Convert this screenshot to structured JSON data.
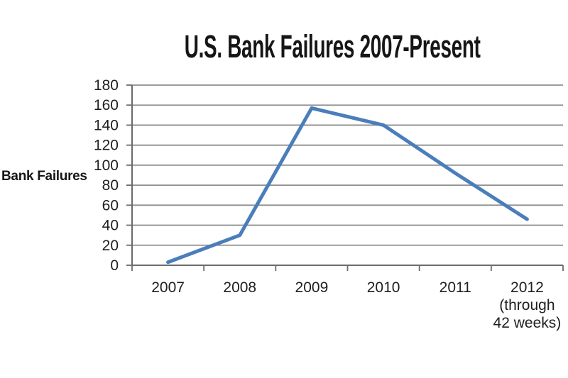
{
  "chart_data": {
    "type": "line",
    "title": "U.S. Bank Failures 2007-Present",
    "ylabel": "Bank Failures",
    "xlabel": "",
    "categories": [
      "2007",
      "2008",
      "2009",
      "2010",
      "2011",
      "2012 (through 42 weeks)"
    ],
    "xtick_label_lines": [
      [
        "2007"
      ],
      [
        "2008"
      ],
      [
        "2009"
      ],
      [
        "2010"
      ],
      [
        "2011"
      ],
      [
        "2012",
        "(through",
        "42 weeks)"
      ]
    ],
    "series": [
      {
        "name": "Bank Failures",
        "values": [
          3,
          30,
          157,
          140,
          92,
          46
        ]
      }
    ],
    "ylim": [
      0,
      180
    ],
    "ytick_step": 20,
    "grid": true,
    "markers": false,
    "legend_position": "none",
    "colors": {
      "line": "#4a7ebb",
      "grid": "#8f8f8f",
      "axis": "#6b6b6b",
      "text": "#202020",
      "title_text": "#161616",
      "background": "#ffffff"
    }
  }
}
